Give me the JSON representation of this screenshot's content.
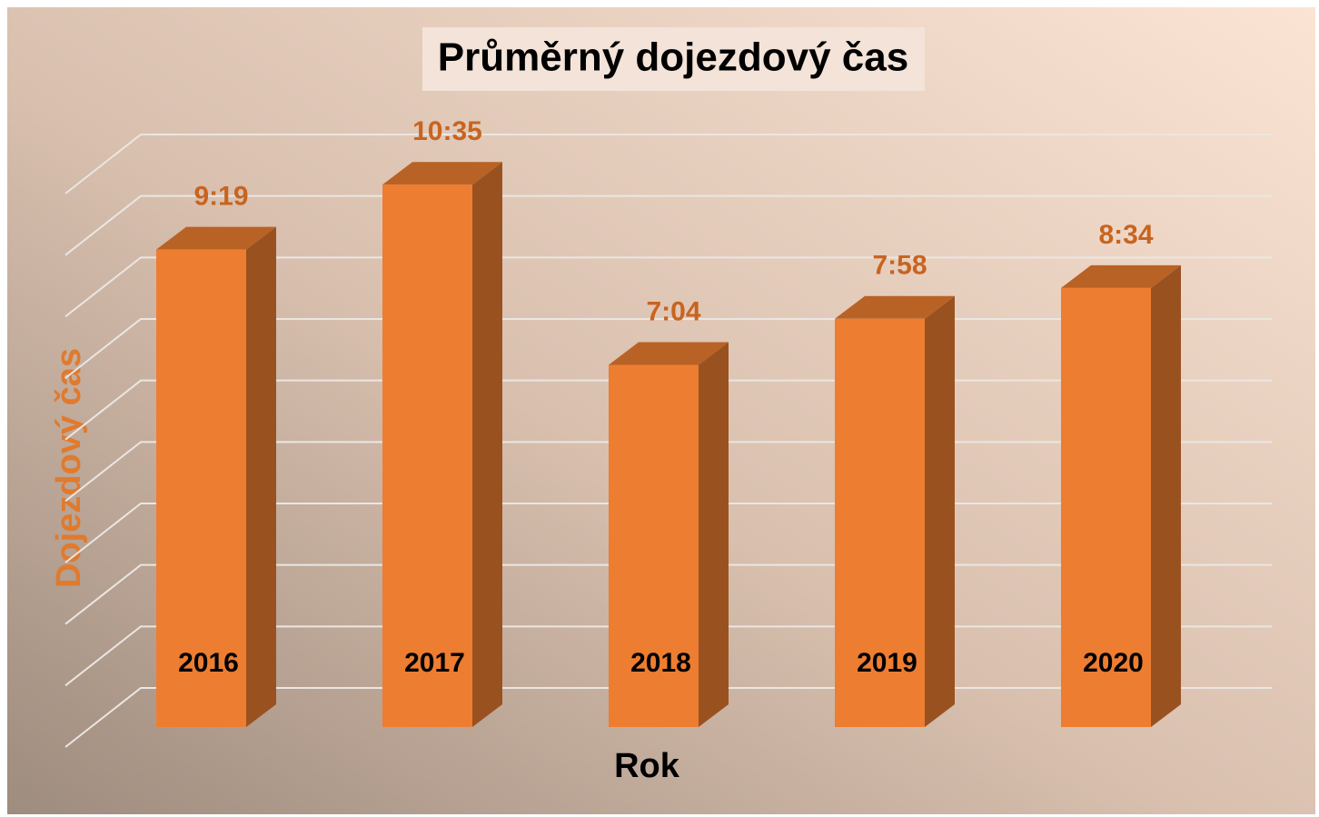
{
  "chart_data": {
    "type": "bar3d",
    "title": "Průměrný dojezdový čas",
    "x_label": "Rok",
    "y_label": "Dojezdový čas",
    "categories": [
      "2016",
      "2017",
      "2018",
      "2019",
      "2020"
    ],
    "values": [
      559,
      635,
      424,
      478,
      514
    ],
    "value_labels": [
      "9:19",
      "10:35",
      "7:04",
      "7:58",
      "8:34"
    ],
    "color": "#ed7d31",
    "ylim": [
      0,
      648
    ],
    "yticks": [
      0,
      72,
      144,
      216,
      288,
      360,
      432,
      504,
      576,
      648
    ],
    "grid": true
  }
}
